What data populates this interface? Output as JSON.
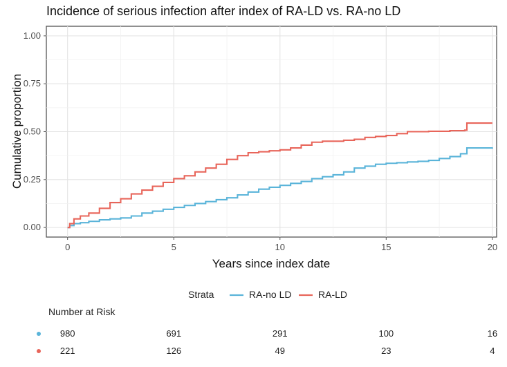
{
  "chart_data": {
    "type": "line",
    "title": "Incidence of serious infection after index of RA-LD vs. RA-no LD",
    "xlabel": "Years since index date",
    "ylabel": "Cumulative proportion",
    "xlim": [
      -1,
      20.2
    ],
    "ylim": [
      -0.05,
      1.05
    ],
    "x_ticks": [
      0,
      5,
      10,
      15,
      20
    ],
    "y_ticks": [
      0.0,
      0.25,
      0.5,
      0.75,
      1.0
    ],
    "x_tick_labels": [
      "0",
      "5",
      "10",
      "15",
      "20"
    ],
    "y_tick_labels": [
      "0.00",
      "0.25",
      "0.50",
      "0.75",
      "1.00"
    ],
    "grid": true,
    "legend": {
      "title": "Strata",
      "position": "bottom",
      "entries": [
        "RA-no LD",
        "RA-LD"
      ]
    },
    "series": [
      {
        "name": "RA-no LD",
        "color": "#5ab4d9",
        "points": [
          [
            0,
            0
          ],
          [
            0.1,
            0.01
          ],
          [
            0.3,
            0.02
          ],
          [
            0.6,
            0.025
          ],
          [
            1.0,
            0.032
          ],
          [
            1.5,
            0.04
          ],
          [
            2.0,
            0.045
          ],
          [
            2.5,
            0.05
          ],
          [
            3.0,
            0.06
          ],
          [
            3.5,
            0.075
          ],
          [
            4.0,
            0.085
          ],
          [
            4.5,
            0.095
          ],
          [
            5.0,
            0.105
          ],
          [
            5.5,
            0.115
          ],
          [
            6.0,
            0.125
          ],
          [
            6.5,
            0.135
          ],
          [
            7.0,
            0.145
          ],
          [
            7.5,
            0.155
          ],
          [
            8.0,
            0.17
          ],
          [
            8.5,
            0.185
          ],
          [
            9.0,
            0.2
          ],
          [
            9.5,
            0.21
          ],
          [
            10.0,
            0.22
          ],
          [
            10.5,
            0.23
          ],
          [
            11.0,
            0.24
          ],
          [
            11.5,
            0.255
          ],
          [
            12.0,
            0.265
          ],
          [
            12.5,
            0.275
          ],
          [
            13.0,
            0.29
          ],
          [
            13.5,
            0.31
          ],
          [
            14.0,
            0.32
          ],
          [
            14.5,
            0.33
          ],
          [
            15.0,
            0.335
          ],
          [
            15.5,
            0.338
          ],
          [
            16.0,
            0.342
          ],
          [
            16.5,
            0.345
          ],
          [
            17.0,
            0.35
          ],
          [
            17.5,
            0.36
          ],
          [
            18.0,
            0.37
          ],
          [
            18.5,
            0.385
          ],
          [
            18.8,
            0.415
          ],
          [
            20.0,
            0.418
          ]
        ]
      },
      {
        "name": "RA-LD",
        "color": "#e8655a",
        "points": [
          [
            0,
            0
          ],
          [
            0.1,
            0.02
          ],
          [
            0.3,
            0.045
          ],
          [
            0.6,
            0.06
          ],
          [
            1.0,
            0.075
          ],
          [
            1.5,
            0.1
          ],
          [
            2.0,
            0.13
          ],
          [
            2.5,
            0.15
          ],
          [
            3.0,
            0.175
          ],
          [
            3.5,
            0.195
          ],
          [
            4.0,
            0.215
          ],
          [
            4.5,
            0.235
          ],
          [
            5.0,
            0.255
          ],
          [
            5.5,
            0.27
          ],
          [
            6.0,
            0.29
          ],
          [
            6.5,
            0.31
          ],
          [
            7.0,
            0.33
          ],
          [
            7.5,
            0.355
          ],
          [
            8.0,
            0.375
          ],
          [
            8.5,
            0.39
          ],
          [
            9.0,
            0.395
          ],
          [
            9.5,
            0.4
          ],
          [
            10.0,
            0.405
          ],
          [
            10.5,
            0.415
          ],
          [
            11.0,
            0.43
          ],
          [
            11.5,
            0.445
          ],
          [
            12.0,
            0.45
          ],
          [
            13.0,
            0.455
          ],
          [
            13.5,
            0.46
          ],
          [
            14.0,
            0.47
          ],
          [
            14.5,
            0.475
          ],
          [
            15.0,
            0.48
          ],
          [
            15.5,
            0.49
          ],
          [
            16.0,
            0.5
          ],
          [
            16.5,
            0.5
          ],
          [
            17.0,
            0.502
          ],
          [
            18.0,
            0.505
          ],
          [
            18.7,
            0.508
          ],
          [
            18.8,
            0.545
          ],
          [
            20.0,
            0.545
          ]
        ]
      }
    ],
    "risk_table": {
      "title": "Number at Risk",
      "times": [
        0,
        5,
        10,
        15,
        20
      ],
      "rows": [
        {
          "name": "RA-no LD",
          "color": "#5ab4d9",
          "values": [
            "980",
            "691",
            "291",
            "100",
            "16"
          ]
        },
        {
          "name": "RA-LD",
          "color": "#e8655a",
          "values": [
            "221",
            "126",
            "49",
            "23",
            "4"
          ]
        }
      ]
    }
  }
}
